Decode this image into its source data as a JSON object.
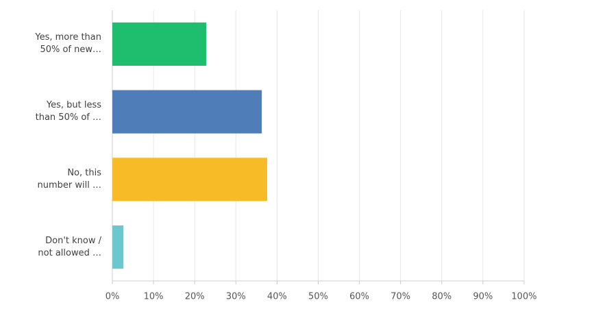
{
  "chart_data": {
    "type": "bar",
    "orientation": "horizontal",
    "categories": [
      "Yes, more than\n50% of new…",
      "Yes, but less\nthan 50% of …",
      "No, this\nnumber will …",
      "Don't know /\nnot allowed …"
    ],
    "values": [
      22.8,
      36.3,
      37.6,
      2.7
    ],
    "colors": [
      "#1fbe6f",
      "#4f7db8",
      "#f6bb27",
      "#6cc8cc"
    ],
    "xlim": [
      0,
      100
    ],
    "xticks": [
      {
        "value": 0,
        "label": "0%"
      },
      {
        "value": 10,
        "label": "10%"
      },
      {
        "value": 20,
        "label": "20%"
      },
      {
        "value": 30,
        "label": "30%"
      },
      {
        "value": 40,
        "label": "40%"
      },
      {
        "value": 50,
        "label": "50%"
      },
      {
        "value": 60,
        "label": "60%"
      },
      {
        "value": 70,
        "label": "70%"
      },
      {
        "value": 80,
        "label": "80%"
      },
      {
        "value": 90,
        "label": "90%"
      },
      {
        "value": 100,
        "label": "100%"
      }
    ],
    "grid": true
  }
}
